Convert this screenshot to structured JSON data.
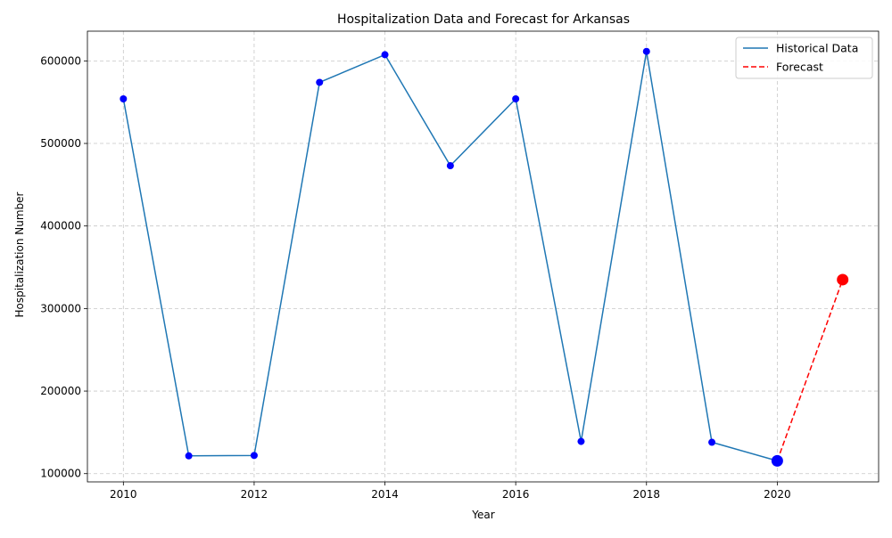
{
  "chart_data": {
    "type": "line",
    "title": "Hospitalization Data and Forecast for Arkansas",
    "xlabel": "Year",
    "ylabel": "Hospitalization Number",
    "xlim": [
      2009.45,
      2021.55
    ],
    "ylim": [
      90000,
      636000
    ],
    "x_ticks": [
      2010,
      2012,
      2014,
      2016,
      2018,
      2020
    ],
    "y_ticks": [
      100000,
      200000,
      300000,
      400000,
      500000,
      600000
    ],
    "grid": true,
    "legend_position": "top-right",
    "series": [
      {
        "name": "Historical Data",
        "style": "solid",
        "color": "#1f77b4",
        "marker_color": "#0000ff",
        "x": [
          2010,
          2011,
          2012,
          2013,
          2014,
          2015,
          2016,
          2017,
          2018,
          2019,
          2020
        ],
        "y": [
          554000,
          121500,
          122000,
          574000,
          607500,
          473000,
          554000,
          139000,
          611500,
          138000,
          115500
        ]
      },
      {
        "name": "Forecast",
        "style": "dashed",
        "color": "#ff0000",
        "marker_color": "#ff0000",
        "x": [
          2020,
          2021
        ],
        "y": [
          115500,
          335000
        ]
      }
    ]
  }
}
